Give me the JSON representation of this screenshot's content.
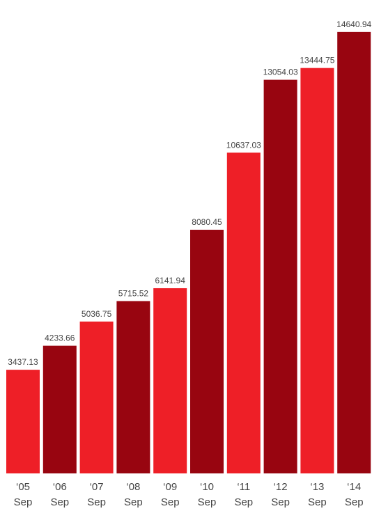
{
  "chart_data": {
    "type": "bar",
    "title": "",
    "xlabel": "",
    "ylabel": "",
    "ylim": [
      0,
      15700
    ],
    "grid": false,
    "legend": "none",
    "categories": [
      [
        "‘05",
        "Sep"
      ],
      [
        "‘06",
        "Sep"
      ],
      [
        "‘07",
        "Sep"
      ],
      [
        "‘08",
        "Sep"
      ],
      [
        "‘09",
        "Sep"
      ],
      [
        "‘10",
        "Sep"
      ],
      [
        "‘11",
        "Sep"
      ],
      [
        "‘12",
        "Sep"
      ],
      [
        "‘13",
        "Sep"
      ],
      [
        "‘14",
        "Sep"
      ]
    ],
    "values": [
      3437.13,
      4233.66,
      5036.75,
      5715.52,
      6141.94,
      8080.45,
      10637.03,
      13054.03,
      13444.75,
      14640.94
    ],
    "value_labels": [
      "3437.13",
      "4233.66",
      "5036.75",
      "5715.52",
      "6141.94",
      "8080.45",
      "10637.03",
      "13054.03",
      "13444.75",
      "14640.94"
    ],
    "colors": [
      "#ee1f27",
      "#980510",
      "#ee1f27",
      "#980510",
      "#ee1f27",
      "#980510",
      "#ee1f27",
      "#980510",
      "#ee1f27",
      "#980510"
    ]
  }
}
